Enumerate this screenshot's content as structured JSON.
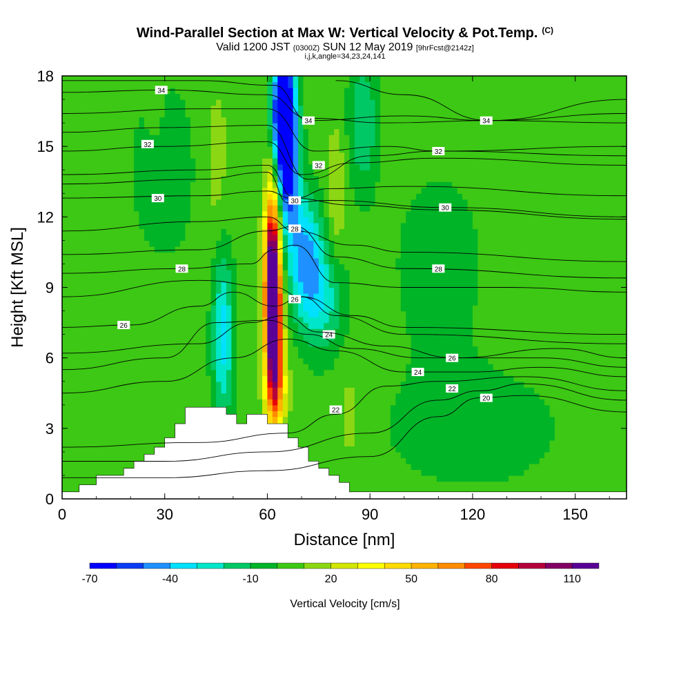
{
  "title": {
    "main": "Wind-Parallel Section at Max W: Vertical Velocity & Pot.Temp.",
    "main_sup": "(C)",
    "sub_a": "Valid 1200 JST",
    "sub_b": "(0300Z)",
    "sub_c": "SUN 12 May 2019",
    "sub_d": "[9hrFcst@2142z]",
    "indices": "i,j,k,angle=34,23,24,141"
  },
  "chart_data": {
    "type": "heatmap",
    "xlabel": "Distance [nm]",
    "ylabel": "Height [Kft MSL]",
    "xlim": [
      0,
      165
    ],
    "ylim": [
      0,
      18
    ],
    "xticks": [
      "0",
      "30",
      "60",
      "90",
      "120",
      "150"
    ],
    "yticks": [
      "0",
      "3",
      "6",
      "9",
      "12",
      "15",
      "18"
    ],
    "colorbar": {
      "label": "Vertical Velocity [cm/s]",
      "min": -70,
      "step": 10,
      "tick_labels": [
        "-70",
        "-40",
        "-10",
        "20",
        "50",
        "80",
        "110"
      ],
      "colors": [
        "#0000ff",
        "#0a3cf5",
        "#1e90ff",
        "#00e1ff",
        "#00e6c8",
        "#00c864",
        "#00b428",
        "#3cc814",
        "#8cd714",
        "#d2e600",
        "#ffff00",
        "#ffdc00",
        "#ffb400",
        "#ff8c00",
        "#ff4600",
        "#e6000a",
        "#b4003c",
        "#820064",
        "#5a0096"
      ]
    },
    "background_value": 5,
    "terrain_kft": [
      [
        0,
        0.3
      ],
      [
        5,
        0.6
      ],
      [
        10,
        1.0
      ],
      [
        15,
        1.0
      ],
      [
        18,
        1.3
      ],
      [
        21,
        1.6
      ],
      [
        24,
        1.9
      ],
      [
        27,
        2.2
      ],
      [
        30,
        2.6
      ],
      [
        33,
        3.2
      ],
      [
        36,
        3.9
      ],
      [
        45,
        3.9
      ],
      [
        48,
        3.6
      ],
      [
        51,
        3.2
      ],
      [
        54,
        3.6
      ],
      [
        57,
        3.6
      ],
      [
        60,
        3.2
      ],
      [
        63,
        3.2
      ],
      [
        66,
        2.6
      ],
      [
        69,
        2.2
      ],
      [
        72,
        1.6
      ],
      [
        75,
        1.3
      ],
      [
        78,
        1.0
      ],
      [
        81,
        0.7
      ],
      [
        84,
        0.3
      ],
      [
        165,
        0.3
      ]
    ],
    "velocity_features": [
      {
        "x_nm": 61.5,
        "z_kft": 9.5,
        "value": 125,
        "sx": 1.6,
        "sz": 2.6
      },
      {
        "x_nm": 62.0,
        "z_kft": 6.5,
        "value": 80,
        "sx": 1.8,
        "sz": 2.2
      },
      {
        "x_nm": 63.0,
        "z_kft": 4.5,
        "value": 30,
        "sx": 2.2,
        "sz": 1.0
      },
      {
        "x_nm": 66.0,
        "z_kft": 15.0,
        "value": -75,
        "sx": 2.2,
        "sz": 2.4
      },
      {
        "x_nm": 64.0,
        "z_kft": 16.5,
        "value": -60,
        "sx": 2.0,
        "sz": 1.8
      },
      {
        "x_nm": 71.0,
        "z_kft": 10.5,
        "value": -40,
        "sx": 3.5,
        "sz": 1.8
      },
      {
        "x_nm": 76.0,
        "z_kft": 8.5,
        "value": -25,
        "sx": 4.5,
        "sz": 1.6
      },
      {
        "x_nm": 47.0,
        "z_kft": 7.0,
        "value": -35,
        "sx": 2.2,
        "sz": 2.6
      },
      {
        "x_nm": 88.0,
        "z_kft": 16.0,
        "value": -20,
        "sx": 3.0,
        "sz": 2.0
      },
      {
        "x_nm": 80.0,
        "z_kft": 13.0,
        "value": 20,
        "sx": 2.0,
        "sz": 2.0
      },
      {
        "x_nm": 30.0,
        "z_kft": 14.0,
        "value": -5,
        "sx": 8.0,
        "sz": 3.0
      },
      {
        "x_nm": 110.0,
        "z_kft": 10.0,
        "value": -5,
        "sx": 10.0,
        "sz": 3.0
      },
      {
        "x_nm": 120.0,
        "z_kft": 3.0,
        "value": -5,
        "sx": 20.0,
        "sz": 2.0
      },
      {
        "x_nm": 45.0,
        "z_kft": 14.0,
        "value": 15,
        "sx": 3.0,
        "sz": 3.0
      },
      {
        "x_nm": 84.0,
        "z_kft": 3.5,
        "value": 15,
        "sx": 2.5,
        "sz": 1.5
      },
      {
        "x_nm": 27.0,
        "z_kft": 17.0,
        "value": 15,
        "sx": 1.5,
        "sz": 1.0
      }
    ],
    "theta_contours": [
      {
        "label": "20",
        "pts": [
          [
            0,
            0.9
          ],
          [
            30,
            0.9
          ],
          [
            60,
            1.2
          ],
          [
            90,
            1.8
          ],
          [
            110,
            3.5
          ],
          [
            122,
            4.3
          ],
          [
            135,
            4.4
          ],
          [
            165,
            3.7
          ]
        ],
        "label_at": [
          124,
          4.3
        ]
      },
      {
        "label": "22",
        "pts": [
          [
            0,
            1.6
          ],
          [
            30,
            1.6
          ],
          [
            60,
            2.0
          ],
          [
            90,
            2.8
          ],
          [
            110,
            4.2
          ],
          [
            122,
            4.6
          ],
          [
            135,
            4.9
          ],
          [
            165,
            4.2
          ]
        ],
        "label_at": [
          114,
          4.7
        ]
      },
      {
        "label": "22",
        "pts": [
          [
            0,
            2.2
          ],
          [
            40,
            2.4
          ],
          [
            66,
            2.8
          ],
          [
            80,
            3.6
          ],
          [
            95,
            4.8
          ],
          [
            110,
            5.0
          ],
          [
            135,
            5.2
          ],
          [
            165,
            4.6
          ]
        ],
        "label_at": [
          80,
          3.8
        ]
      },
      {
        "label": "24",
        "pts": [
          [
            0,
            4.5
          ],
          [
            30,
            5.0
          ],
          [
            50,
            6.0
          ],
          [
            66,
            6.8
          ],
          [
            80,
            6.3
          ],
          [
            100,
            5.4
          ],
          [
            120,
            5.4
          ],
          [
            140,
            5.6
          ],
          [
            165,
            5.2
          ]
        ],
        "label_at": [
          104,
          5.4
        ]
      },
      {
        "label": "24",
        "pts": [
          [
            0,
            5.5
          ],
          [
            30,
            6.0
          ],
          [
            45,
            7.5
          ],
          [
            60,
            7.6
          ],
          [
            72,
            7.0
          ],
          [
            85,
            6.4
          ],
          [
            105,
            6.0
          ],
          [
            140,
            6.0
          ],
          [
            165,
            5.6
          ]
        ],
        "label_at": [
          78,
          7.0
        ]
      },
      {
        "label": "26",
        "pts": [
          [
            0,
            6.2
          ],
          [
            40,
            6.6
          ],
          [
            55,
            7.5
          ],
          [
            65,
            7.8
          ],
          [
            75,
            7.1
          ],
          [
            95,
            6.5
          ],
          [
            115,
            6.0
          ],
          [
            145,
            6.4
          ],
          [
            165,
            6.0
          ]
        ],
        "label_at": [
          114,
          6.0
        ]
      },
      {
        "label": "26",
        "pts": [
          [
            0,
            7.3
          ],
          [
            20,
            7.4
          ],
          [
            40,
            8.2
          ],
          [
            50,
            8.8
          ],
          [
            62,
            8.2
          ],
          [
            70,
            8.6
          ],
          [
            80,
            7.8
          ],
          [
            100,
            7.0
          ],
          [
            165,
            6.6
          ]
        ],
        "label_at": [
          18,
          7.4
        ]
      },
      {
        "label": "26",
        "pts": [
          [
            0,
            8.6
          ],
          [
            40,
            9.3
          ],
          [
            62,
            9.0
          ],
          [
            70,
            8.6
          ],
          [
            85,
            7.8
          ],
          [
            100,
            7.3
          ],
          [
            165,
            7.0
          ]
        ],
        "label_at": [
          68,
          8.5
        ]
      },
      {
        "label": "28",
        "pts": [
          [
            0,
            9.6
          ],
          [
            35,
            9.8
          ],
          [
            55,
            10.0
          ],
          [
            62,
            10.6
          ],
          [
            68,
            10.8
          ],
          [
            80,
            9.2
          ],
          [
            100,
            9.0
          ],
          [
            130,
            9.0
          ],
          [
            165,
            8.8
          ]
        ],
        "label_at": [
          35,
          9.8
        ]
      },
      {
        "label": "28",
        "pts": [
          [
            0,
            10.4
          ],
          [
            40,
            10.6
          ],
          [
            60,
            11.4
          ],
          [
            68,
            11.6
          ],
          [
            80,
            10.3
          ],
          [
            100,
            9.8
          ],
          [
            165,
            9.4
          ]
        ],
        "label_at": [
          110,
          9.8
        ]
      },
      {
        "label": "28",
        "pts": [
          [
            0,
            11.4
          ],
          [
            40,
            11.8
          ],
          [
            60,
            12.0
          ],
          [
            68,
            11.4
          ],
          [
            85,
            10.8
          ],
          [
            100,
            10.5
          ],
          [
            165,
            10.1
          ]
        ],
        "label_at": [
          68,
          11.5
        ]
      },
      {
        "label": "30",
        "pts": [
          [
            0,
            12.8
          ],
          [
            40,
            12.9
          ],
          [
            60,
            13.1
          ],
          [
            67,
            12.8
          ],
          [
            85,
            12.5
          ],
          [
            110,
            12.3
          ],
          [
            165,
            11.9
          ]
        ],
        "label_at": [
          28,
          12.8
        ]
      },
      {
        "label": "30",
        "pts": [
          [
            0,
            13.4
          ],
          [
            40,
            13.6
          ],
          [
            60,
            13.9
          ],
          [
            66,
            12.6
          ],
          [
            78,
            12.7
          ],
          [
            112,
            12.4
          ],
          [
            165,
            12.0
          ]
        ],
        "label_at": [
          112,
          12.4
        ]
      },
      {
        "label": "30",
        "pts": [
          [
            0,
            13.8
          ],
          [
            40,
            14.0
          ],
          [
            60,
            14.2
          ],
          [
            68,
            12.8
          ],
          [
            78,
            13.2
          ],
          [
            100,
            13.3
          ],
          [
            165,
            12.9
          ]
        ],
        "label_at": [
          68,
          12.7
        ]
      },
      {
        "label": "32",
        "pts": [
          [
            0,
            14.8
          ],
          [
            30,
            15.0
          ],
          [
            60,
            15.2
          ],
          [
            70,
            13.8
          ],
          [
            85,
            14.3
          ],
          [
            110,
            14.5
          ],
          [
            165,
            14.2
          ]
        ],
        "label_at": [
          25,
          15.1
        ]
      },
      {
        "label": "32",
        "pts": [
          [
            0,
            15.6
          ],
          [
            30,
            15.8
          ],
          [
            60,
            15.9
          ],
          [
            72,
            13.6
          ],
          [
            90,
            14.6
          ],
          [
            110,
            14.8
          ],
          [
            165,
            14.6
          ]
        ],
        "label_at": [
          75,
          14.2
        ]
      },
      {
        "label": "32",
        "pts": [
          [
            0,
            16.4
          ],
          [
            40,
            16.6
          ],
          [
            60,
            16.6
          ],
          [
            74,
            14.8
          ],
          [
            95,
            15.0
          ],
          [
            110,
            14.8
          ],
          [
            165,
            15.0
          ]
        ],
        "label_at": [
          110,
          14.8
        ]
      },
      {
        "label": "34",
        "pts": [
          [
            0,
            17.3
          ],
          [
            30,
            17.4
          ],
          [
            60,
            17.2
          ],
          [
            72,
            16.2
          ],
          [
            95,
            16.0
          ],
          [
            125,
            16.1
          ],
          [
            165,
            16.0
          ]
        ],
        "label_at": [
          29,
          17.4
        ]
      },
      {
        "label": "34",
        "pts": [
          [
            0,
            17.8
          ],
          [
            40,
            17.8
          ],
          [
            62,
            17.6
          ],
          [
            72,
            16.1
          ],
          [
            100,
            16.3
          ],
          [
            125,
            16.1
          ],
          [
            165,
            16.4
          ]
        ],
        "label_at": [
          72,
          16.1
        ]
      },
      {
        "label": "34",
        "pts": [
          [
            80,
            17.8
          ],
          [
            100,
            17.2
          ],
          [
            125,
            16.1
          ],
          [
            165,
            17.0
          ]
        ],
        "label_at": [
          124,
          16.1
        ]
      }
    ]
  }
}
